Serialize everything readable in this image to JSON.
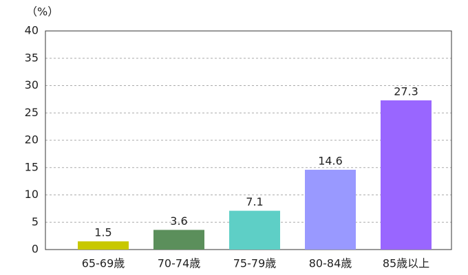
{
  "chart_data": {
    "type": "bar",
    "y_label": "（%）",
    "categories": [
      "65-69歳",
      "70-74歳",
      "75-79歳",
      "80-84歳",
      "85歳以上"
    ],
    "values": [
      1.5,
      3.6,
      7.1,
      14.6,
      27.3
    ],
    "colors": [
      "#c8c800",
      "#5b8f5b",
      "#5ecfc6",
      "#9999ff",
      "#9966ff"
    ],
    "ylim": [
      0,
      40
    ],
    "yticks": [
      0,
      5,
      10,
      15,
      20,
      25,
      30,
      35,
      40
    ],
    "grid": true
  }
}
